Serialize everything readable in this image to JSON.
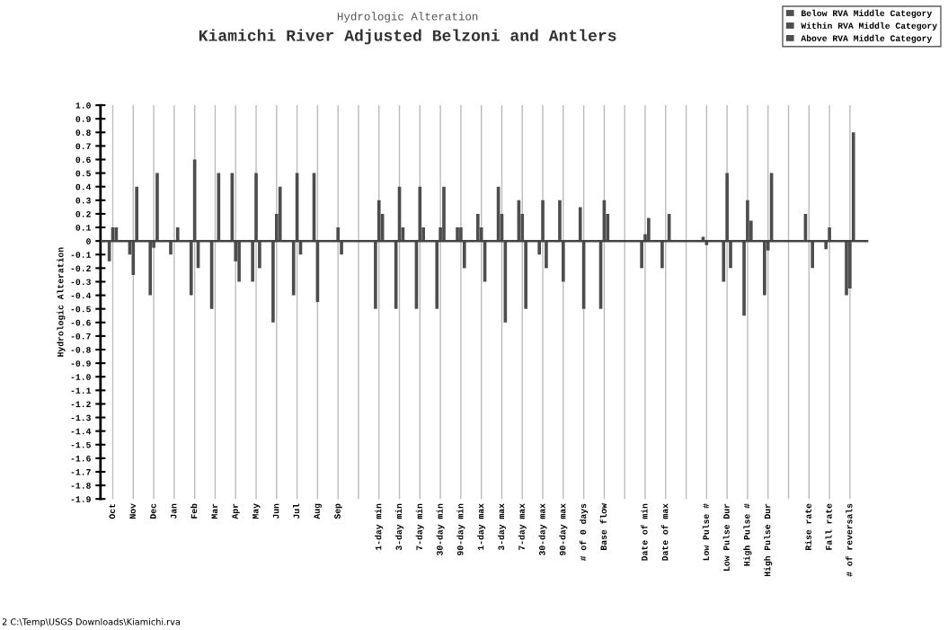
{
  "chart_data": {
    "type": "bar",
    "subtitle": "Hydrologic Alteration",
    "title": "Kiamichi River Adjusted Belzoni and Antlers",
    "ylabel": "Hydrologic Alteration",
    "categories": [
      "Oct",
      "Nov",
      "Dec",
      "Jan",
      "Feb",
      "Mar",
      "Apr",
      "May",
      "Jun",
      "Jul",
      "Aug",
      "Sep",
      null,
      "1-day min",
      "3-day min",
      "7-day min",
      "30-day min",
      "90-day min",
      "1-day max",
      "3-day max",
      "7-day max",
      "30-day max",
      "90-day max",
      "# of 0 days",
      "Base flow",
      null,
      "Date of min",
      "Date of max",
      null,
      "Low Pulse #",
      "Low Pulse Dur",
      "High Pulse #",
      "High Pulse Dur",
      null,
      "Rise rate",
      "Fall rate",
      "# of reversals"
    ],
    "series": [
      {
        "name": "Below RVA Middle Category",
        "color": "#4d4d4d",
        "values": [
          -0.15,
          -0.1,
          -0.4,
          -0.1,
          -0.4,
          -0.5,
          0.5,
          -0.3,
          -0.6,
          -0.4,
          0.5,
          0,
          null,
          -0.5,
          -0.5,
          -0.5,
          -0.5,
          0.1,
          0.2,
          0.4,
          0.3,
          -0.1,
          0.3,
          0.25,
          -0.5,
          null,
          -0.2,
          -0.2,
          null,
          0.03,
          -0.3,
          -0.55,
          -0.4,
          null,
          0.2,
          -0.06,
          -0.4
        ]
      },
      {
        "name": "Within RVA Middle Category",
        "color": "#4d4d4d",
        "values": [
          0.1,
          -0.25,
          -0.05,
          0,
          0.6,
          0,
          -0.15,
          0.5,
          0.2,
          0.5,
          -0.45,
          0.1,
          null,
          0.3,
          0.4,
          0.4,
          0.1,
          0.1,
          0.1,
          0.2,
          0.2,
          0.3,
          -0.3,
          -0.5,
          0.3,
          null,
          0.05,
          0,
          null,
          -0.03,
          0.5,
          0.3,
          -0.07,
          null,
          0,
          0.1,
          -0.35
        ]
      },
      {
        "name": "Above RVA Middle Category",
        "color": "#4d4d4d",
        "values": [
          0.1,
          0.4,
          0.5,
          0.1,
          -0.2,
          0.5,
          -0.3,
          -0.2,
          0.4,
          -0.1,
          0,
          -0.1,
          null,
          0.2,
          0.1,
          0.1,
          0.4,
          -0.2,
          -0.3,
          -0.6,
          -0.5,
          -0.2,
          0,
          0,
          0.2,
          null,
          0.17,
          0.2,
          null,
          0,
          -0.2,
          0.15,
          0.5,
          null,
          -0.2,
          0,
          0.8
        ]
      }
    ],
    "ylim": [
      -1.9,
      1.0
    ],
    "yticks": [
      {
        "value": 1.0,
        "label": "1.0"
      },
      0.9,
      0.8,
      0.7,
      0.6,
      0.5,
      0.4,
      0.3,
      0.2,
      0.1,
      0,
      -0.1,
      -0.2,
      -0.3,
      -0.4,
      -0.5,
      -0.6,
      -0.7,
      -0.8,
      -0.9,
      {
        "value": -1.0,
        "label": "-1.0"
      },
      -1.1,
      -1.2,
      -1.3,
      -1.4,
      -1.5,
      -1.6,
      -1.7,
      -1.8,
      -1.9
    ],
    "ref_lines": [
      {
        "axis": "y",
        "value": 0,
        "color": "#444444"
      }
    ],
    "grid": "x",
    "legend": "top right",
    "annotations": [
      "2 C:\\Temp\\USGS Downloads\\Kiamichi.rva"
    ]
  }
}
